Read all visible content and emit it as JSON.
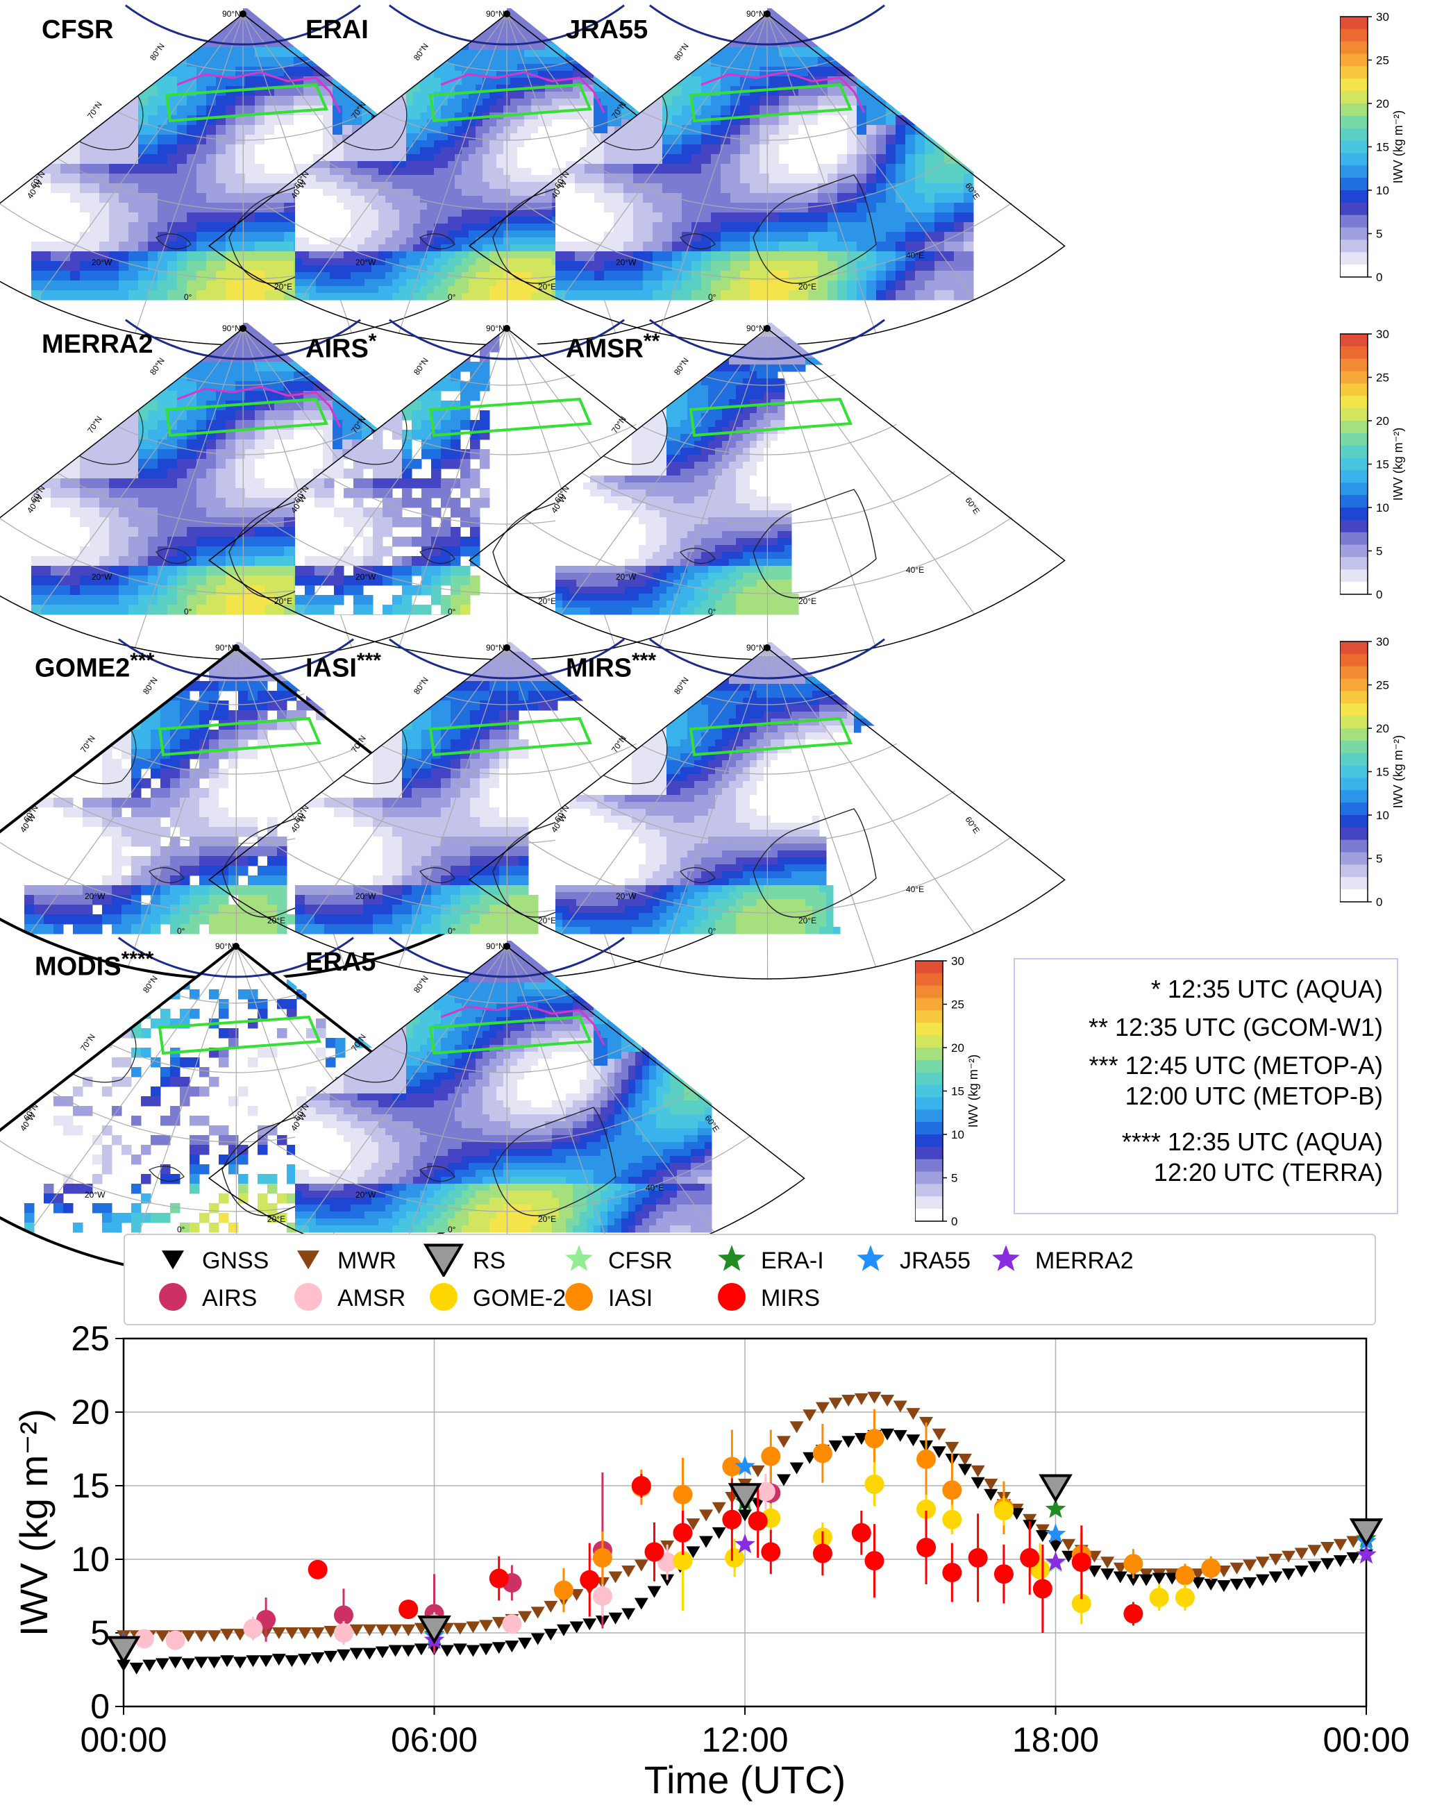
{
  "colorbar": {
    "label": "IWV (kg m⁻²)",
    "ticks": [
      "0",
      "5",
      "10",
      "15",
      "20",
      "25",
      "30"
    ],
    "colors": [
      "#ffffff",
      "#e4e4f5",
      "#c4c4ea",
      "#a0a0df",
      "#7b7bd2",
      "#4545c4",
      "#1e46d2",
      "#1f6fe0",
      "#2d95e8",
      "#3ab2eb",
      "#48c6e0",
      "#5ad0c4",
      "#78d8a6",
      "#a6e07e",
      "#d2e55e",
      "#f2e44a",
      "#f8c83e",
      "#f8a838",
      "#f28a33",
      "#ea6a30",
      "#e04e38"
    ]
  },
  "map_labels": {
    "lat": [
      "90°N",
      "80°N",
      "70°N",
      "60°N"
    ],
    "lon": [
      "40°W",
      "20°W",
      "0°",
      "20°E",
      "40°E",
      "60°E"
    ]
  },
  "panels": [
    {
      "name": "CFSR",
      "sup": "",
      "style": "full",
      "smooth": false
    },
    {
      "name": "ERAI",
      "sup": "",
      "style": "full",
      "smooth": true
    },
    {
      "name": "JRA55",
      "sup": "",
      "style": "full",
      "smooth": false
    },
    {
      "name": "MERRA2",
      "sup": "",
      "style": "full",
      "smooth": false
    },
    {
      "name": "AIRS",
      "sup": "*",
      "style": "airs",
      "smooth": false
    },
    {
      "name": "AMSR",
      "sup": "**",
      "style": "amsr",
      "smooth": true
    },
    {
      "name": "GOME2",
      "sup": "***",
      "style": "gome",
      "smooth": false
    },
    {
      "name": "IASI",
      "sup": "***",
      "style": "iasi",
      "smooth": false
    },
    {
      "name": "MIRS",
      "sup": "***",
      "style": "mirs",
      "smooth": true
    },
    {
      "name": "MODIS",
      "sup": "****",
      "style": "modis",
      "smooth": false
    },
    {
      "name": "ERA5",
      "sup": "",
      "style": "full",
      "smooth": true
    }
  ],
  "notes": [
    "* 12:35 UTC (AQUA)",
    "** 12:35 UTC (GCOM-W1)",
    "*** 12:45 UTC (METOP-A)",
    "12:00 UTC (METOP-B)",
    "**** 12:35 UTC (AQUA)",
    "12:20 UTC (TERRA)"
  ],
  "legend": [
    {
      "label": "GNSS",
      "marker": "tri-down",
      "color": "#000000"
    },
    {
      "label": "MWR",
      "marker": "tri-down",
      "color": "#8b4513"
    },
    {
      "label": "RS",
      "marker": "tri-down-big",
      "color": "#999999"
    },
    {
      "label": "CFSR",
      "marker": "star",
      "color": "#90ee90"
    },
    {
      "label": "ERA-I",
      "marker": "star",
      "color": "#228b22"
    },
    {
      "label": "JRA55",
      "marker": "star",
      "color": "#1e90ff"
    },
    {
      "label": "MERRA2",
      "marker": "star",
      "color": "#8a2be2"
    },
    {
      "label": "AIRS",
      "marker": "circle",
      "color": "#cd3163"
    },
    {
      "label": "AMSR",
      "marker": "circle",
      "color": "#ffc0cb"
    },
    {
      "label": "GOME-2",
      "marker": "circle",
      "color": "#ffd700"
    },
    {
      "label": "IASI",
      "marker": "circle",
      "color": "#ff8c00"
    },
    {
      "label": "MIRS",
      "marker": "circle",
      "color": "#ff0000"
    }
  ],
  "chart_data": {
    "type": "scatter",
    "title": "",
    "xlabel": "Time (UTC)",
    "ylabel": "IWV (kg m⁻²)",
    "xlim": [
      0,
      24
    ],
    "ylim": [
      0,
      25
    ],
    "xticks": [
      0,
      6,
      12,
      18,
      24
    ],
    "xtick_labels": [
      "00:00",
      "06:00",
      "12:00",
      "18:00",
      "00:00"
    ],
    "yticks": [
      0,
      5,
      10,
      15,
      20,
      25
    ],
    "ytick_labels": [
      "0",
      "5",
      "10",
      "15",
      "20",
      "25"
    ],
    "grid": true,
    "series": [
      {
        "name": "GNSS",
        "t": [
          0.0,
          0.25,
          0.5,
          0.75,
          1.0,
          1.25,
          1.5,
          1.75,
          2.0,
          2.25,
          2.5,
          2.75,
          3.0,
          3.25,
          3.5,
          3.75,
          4.0,
          4.25,
          4.5,
          4.75,
          5.0,
          5.25,
          5.5,
          5.75,
          6.0,
          6.25,
          6.5,
          6.75,
          7.0,
          7.25,
          7.5,
          7.75,
          8.0,
          8.25,
          8.5,
          8.75,
          9.0,
          9.25,
          9.5,
          9.75,
          10.0,
          10.25,
          10.5,
          10.75,
          11.0,
          11.25,
          11.5,
          11.75,
          12.0,
          12.25,
          12.5,
          12.75,
          13.0,
          13.25,
          13.5,
          13.75,
          14.0,
          14.25,
          14.5,
          14.75,
          15.0,
          15.25,
          15.5,
          15.75,
          16.0,
          16.25,
          16.5,
          16.75,
          17.0,
          17.25,
          17.5,
          17.75,
          18.0,
          18.25,
          18.5,
          18.75,
          19.0,
          19.25,
          19.5,
          19.75,
          20.0,
          20.25,
          20.5,
          20.75,
          21.0,
          21.25,
          21.5,
          21.75,
          22.0,
          22.25,
          22.5,
          22.75,
          23.0,
          23.25,
          23.5,
          23.75,
          24.0
        ],
        "iwv": [
          2.8,
          2.6,
          2.8,
          2.9,
          3.0,
          2.9,
          3.0,
          3.0,
          3.1,
          3.0,
          3.1,
          3.1,
          3.2,
          3.1,
          3.2,
          3.3,
          3.4,
          3.5,
          3.6,
          3.6,
          3.7,
          3.8,
          3.8,
          3.9,
          3.9,
          3.8,
          3.9,
          3.8,
          3.9,
          4.0,
          4.1,
          4.3,
          4.6,
          4.9,
          5.2,
          5.4,
          5.6,
          5.8,
          6.0,
          6.3,
          7.0,
          7.8,
          8.6,
          9.5,
          10.5,
          11.2,
          11.8,
          12.3,
          13.0,
          13.8,
          14.6,
          15.4,
          16.2,
          16.9,
          17.4,
          17.7,
          18.0,
          18.2,
          18.4,
          18.5,
          18.4,
          18.1,
          17.7,
          17.3,
          16.8,
          16.1,
          15.2,
          14.4,
          13.7,
          13.1,
          12.3,
          11.6,
          10.9,
          10.2,
          9.6,
          9.2,
          9.0,
          8.8,
          8.6,
          8.6,
          8.7,
          8.7,
          8.6,
          8.4,
          8.3,
          8.2,
          8.3,
          8.4,
          8.6,
          8.8,
          9.0,
          9.2,
          9.5,
          9.7,
          9.9,
          10.1,
          10.3
        ]
      },
      {
        "name": "MWR",
        "t": [
          0.0,
          0.25,
          0.5,
          0.75,
          1.0,
          1.25,
          1.5,
          1.75,
          2.0,
          2.25,
          2.5,
          2.75,
          3.0,
          3.25,
          3.5,
          3.75,
          4.0,
          4.25,
          4.5,
          4.75,
          5.0,
          5.25,
          5.5,
          5.75,
          6.0,
          6.25,
          6.5,
          6.75,
          7.0,
          7.25,
          7.5,
          7.75,
          8.0,
          8.25,
          8.5,
          8.75,
          9.0,
          9.25,
          9.5,
          9.75,
          10.0,
          10.25,
          10.5,
          10.75,
          11.0,
          11.25,
          11.5,
          11.75,
          12.0,
          12.25,
          12.5,
          12.75,
          13.0,
          13.25,
          13.5,
          13.75,
          14.0,
          14.25,
          14.5,
          14.75,
          15.0,
          15.25,
          15.5,
          15.75,
          16.0,
          16.25,
          16.5,
          16.75,
          17.0,
          17.25,
          17.5,
          17.75,
          18.0,
          18.25,
          18.5,
          18.75,
          19.0,
          19.25,
          19.5,
          19.75,
          20.0,
          20.25,
          20.5,
          20.75,
          21.0,
          21.25,
          21.5,
          21.75,
          22.0,
          22.25,
          22.5,
          22.75,
          23.0,
          23.25,
          23.5,
          23.75,
          24.0
        ],
        "iwv": [
          4.8,
          4.8,
          4.8,
          4.8,
          4.8,
          4.8,
          4.8,
          4.8,
          4.9,
          4.9,
          4.9,
          5.0,
          5.0,
          5.0,
          5.0,
          5.0,
          5.1,
          5.1,
          5.2,
          5.2,
          5.2,
          5.2,
          5.2,
          5.3,
          5.2,
          5.3,
          5.3,
          5.4,
          5.5,
          5.7,
          5.9,
          6.1,
          6.4,
          6.8,
          7.2,
          7.6,
          8.0,
          8.4,
          8.8,
          9.2,
          9.6,
          10.2,
          10.9,
          11.6,
          12.4,
          13.0,
          13.5,
          14.2,
          15.1,
          16.0,
          17.0,
          18.0,
          19.0,
          19.8,
          20.3,
          20.6,
          20.8,
          20.9,
          21.0,
          20.8,
          20.4,
          19.9,
          19.3,
          18.5,
          17.6,
          16.8,
          16.0,
          15.1,
          14.2,
          13.4,
          12.7,
          12.0,
          11.5,
          11.0,
          10.6,
          10.2,
          9.8,
          9.4,
          9.2,
          9.0,
          9.0,
          9.0,
          9.0,
          9.0,
          9.0,
          9.2,
          9.4,
          9.6,
          9.8,
          10.0,
          10.2,
          10.4,
          10.6,
          10.8,
          11.0,
          11.2,
          11.3
        ]
      },
      {
        "name": "RS",
        "t": [
          0,
          6,
          12,
          18,
          24
        ],
        "iwv": [
          3.9,
          5.3,
          14.3,
          14.9,
          11.9
        ]
      },
      {
        "name": "CFSR",
        "t": [
          0,
          6,
          12,
          18,
          24
        ],
        "iwv": [
          4.4,
          4.9,
          14.2,
          9.7,
          11.4
        ]
      },
      {
        "name": "ERA-I",
        "t": [
          0,
          6,
          12,
          18,
          24
        ],
        "iwv": [
          4.4,
          4.9,
          13.9,
          13.4,
          11.4
        ]
      },
      {
        "name": "JRA55",
        "t": [
          0,
          6,
          12,
          18,
          24
        ],
        "iwv": [
          4.3,
          4.8,
          16.3,
          11.7,
          11.2
        ]
      },
      {
        "name": "MERRA2",
        "t": [
          0,
          6,
          12,
          18,
          24
        ],
        "iwv": [
          4.3,
          4.5,
          11.0,
          9.8,
          10.3
        ]
      },
      {
        "name": "AIRS",
        "t": [
          2.75,
          4.25,
          6.0,
          7.5,
          9.25,
          12.5
        ],
        "iwv": [
          5.9,
          6.2,
          6.3,
          8.4,
          10.6,
          14.5
        ],
        "err": [
          1.5,
          1.8,
          2.7,
          1.2,
          5.3,
          2.0
        ]
      },
      {
        "name": "AMSR",
        "t": [
          0.4,
          1.0,
          2.5,
          4.25,
          6.0,
          7.5,
          9.25,
          10.5,
          12.4
        ],
        "iwv": [
          4.6,
          4.5,
          5.3,
          5.0,
          5.6,
          5.6,
          7.5,
          9.8,
          14.6
        ],
        "err": [
          0.5,
          0.5,
          0.8,
          0.8,
          0.8,
          0.6,
          1.4,
          1.2,
          1.2
        ]
      },
      {
        "name": "GOME-2",
        "t": [
          10.8,
          11.8,
          12.5,
          13.5,
          14.5,
          15.5,
          16.0,
          17.0,
          17.7,
          18.5,
          20.0,
          20.5
        ],
        "iwv": [
          9.9,
          10.1,
          12.8,
          11.5,
          15.1,
          13.4,
          12.7,
          13.3,
          9.3,
          7.0,
          7.4,
          7.4
        ],
        "err": [
          3.4,
          1.3,
          1.0,
          1.0,
          1.5,
          1.0,
          1.0,
          1.0,
          1.8,
          1.4,
          0.9,
          0.9
        ]
      },
      {
        "name": "IASI",
        "t": [
          8.5,
          9.25,
          10.0,
          10.8,
          11.75,
          12.5,
          13.5,
          14.5,
          15.5,
          16.0,
          17.0,
          18.5,
          19.5,
          20.5,
          21.0
        ],
        "iwv": [
          7.9,
          10.1,
          14.9,
          14.4,
          16.3,
          17.0,
          17.2,
          18.2,
          16.8,
          14.7,
          13.5,
          10.3,
          9.7,
          8.9,
          9.4
        ],
        "err": [
          1.5,
          1.8,
          1.2,
          2.5,
          2.5,
          1.8,
          2.0,
          2.0,
          2.5,
          2.5,
          1.8,
          1.5,
          1.0,
          0.8,
          0.8
        ]
      },
      {
        "name": "MIRS",
        "t": [
          3.75,
          5.5,
          7.25,
          9.0,
          10.0,
          10.25,
          10.8,
          11.75,
          12.25,
          12.5,
          13.5,
          14.25,
          14.5,
          15.5,
          16.0,
          16.5,
          17.0,
          17.5,
          17.75,
          18.5,
          19.5
        ],
        "iwv": [
          9.3,
          6.6,
          8.7,
          8.6,
          15.0,
          10.5,
          11.8,
          12.7,
          12.6,
          10.5,
          10.4,
          11.8,
          9.9,
          10.8,
          9.1,
          10.1,
          9.0,
          10.1,
          8.0,
          9.8,
          6.3
        ],
        "err": [
          0.5,
          0.5,
          1.5,
          2.5,
          0.8,
          2.0,
          1.5,
          2.8,
          2.5,
          1.5,
          1.5,
          1.5,
          2.5,
          2.5,
          2.0,
          3.0,
          2.0,
          2.5,
          3.0,
          2.5,
          0.8
        ]
      }
    ]
  }
}
